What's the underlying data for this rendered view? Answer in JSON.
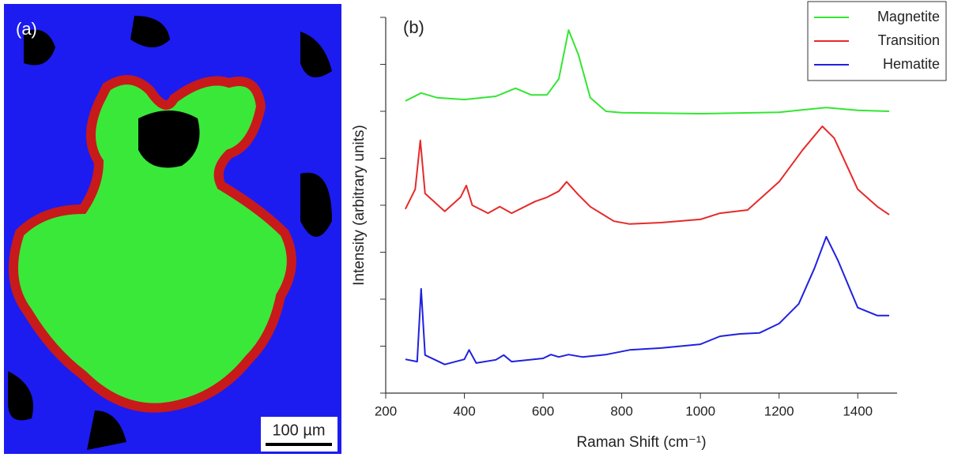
{
  "panel_a": {
    "label": "(a)",
    "scale_bar": "100 µm"
  },
  "chart_data": {
    "type": "line",
    "panel_label": "(b)",
    "x_label": "Raman Shift (cm⁻¹)",
    "y_label": "Intensity (arbitrary units)",
    "xlim": [
      200,
      1500
    ],
    "xticks": [
      200,
      400,
      600,
      800,
      1000,
      1200,
      1400
    ],
    "ylim": [
      0,
      8
    ],
    "yticks": [
      0,
      1,
      2,
      3,
      4,
      5,
      6,
      7,
      8
    ],
    "legend": "top-right",
    "series": [
      {
        "name": "Magnetite",
        "color": "#33e633",
        "x": [
          250,
          290,
          330,
          400,
          480,
          530,
          570,
          610,
          640,
          665,
          690,
          720,
          760,
          800,
          1000,
          1200,
          1320,
          1400,
          1480
        ],
        "values": [
          6.22,
          6.39,
          6.29,
          6.25,
          6.32,
          6.49,
          6.35,
          6.35,
          6.69,
          7.73,
          7.2,
          6.29,
          6.0,
          5.97,
          5.95,
          5.98,
          6.08,
          6.02,
          6.0
        ]
      },
      {
        "name": "Transition",
        "color": "#e62a2a",
        "x": [
          250,
          275,
          288,
          300,
          350,
          390,
          405,
          420,
          460,
          490,
          520,
          580,
          610,
          640,
          660,
          690,
          720,
          780,
          820,
          900,
          1000,
          1050,
          1120,
          1200,
          1260,
          1310,
          1340,
          1400,
          1450,
          1480
        ],
        "values": [
          3.92,
          4.34,
          5.38,
          4.25,
          3.87,
          4.17,
          4.42,
          4.0,
          3.83,
          3.97,
          3.83,
          4.08,
          4.17,
          4.3,
          4.5,
          4.22,
          3.97,
          3.66,
          3.6,
          3.63,
          3.7,
          3.83,
          3.9,
          4.5,
          5.18,
          5.68,
          5.43,
          4.34,
          3.97,
          3.8
        ]
      },
      {
        "name": "Hematite",
        "color": "#2020e0",
        "x": [
          250,
          280,
          290,
          300,
          350,
          400,
          412,
          430,
          480,
          500,
          520,
          600,
          620,
          640,
          665,
          700,
          760,
          820,
          900,
          1000,
          1050,
          1100,
          1150,
          1200,
          1250,
          1290,
          1320,
          1350,
          1400,
          1450,
          1480
        ],
        "values": [
          0.72,
          0.67,
          2.22,
          0.81,
          0.61,
          0.72,
          0.92,
          0.64,
          0.71,
          0.81,
          0.67,
          0.74,
          0.82,
          0.77,
          0.82,
          0.77,
          0.82,
          0.92,
          0.96,
          1.04,
          1.21,
          1.26,
          1.28,
          1.48,
          1.9,
          2.66,
          3.33,
          2.82,
          1.82,
          1.65,
          1.65
        ]
      }
    ]
  }
}
